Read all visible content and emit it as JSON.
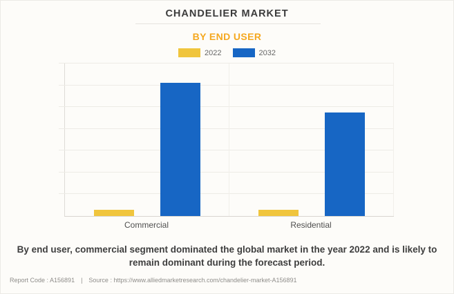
{
  "header": {
    "title": "CHANDELIER MARKET",
    "subtitle": "BY END USER"
  },
  "chart_data": {
    "type": "bar",
    "title": "CHANDELIER MARKET",
    "subtitle": "BY END USER",
    "categories": [
      "Commercial",
      "Residential"
    ],
    "series": [
      {
        "name": "2022",
        "color": "#F0C53D",
        "values": [
          0.3,
          0.28
        ]
      },
      {
        "name": "2032",
        "color": "#1766C4",
        "values": [
          6.1,
          4.75
        ]
      }
    ],
    "xlabel": "",
    "ylabel": "",
    "ylim": [
      0,
      7
    ],
    "y_tick_labels_visible": false,
    "gridlines": "horizontal, 7 equal intervals; values in relative units (1 unit = 1 gridline interval)",
    "legend_position": "top-center"
  },
  "summary": "By end user, commercial segment dominated the global market in the year 2022 and is likely to remain dominant during the forecast period.",
  "footer": {
    "report_code": "Report Code : A156891",
    "separator": "|",
    "source": "Source : https://www.alliedmarketresearch.com/chandelier-market-A156891"
  },
  "colors": {
    "accent_orange": "#F5A81F",
    "bar_yellow": "#F0C53D",
    "bar_blue": "#1766C4",
    "background": "#FDFCF9"
  }
}
